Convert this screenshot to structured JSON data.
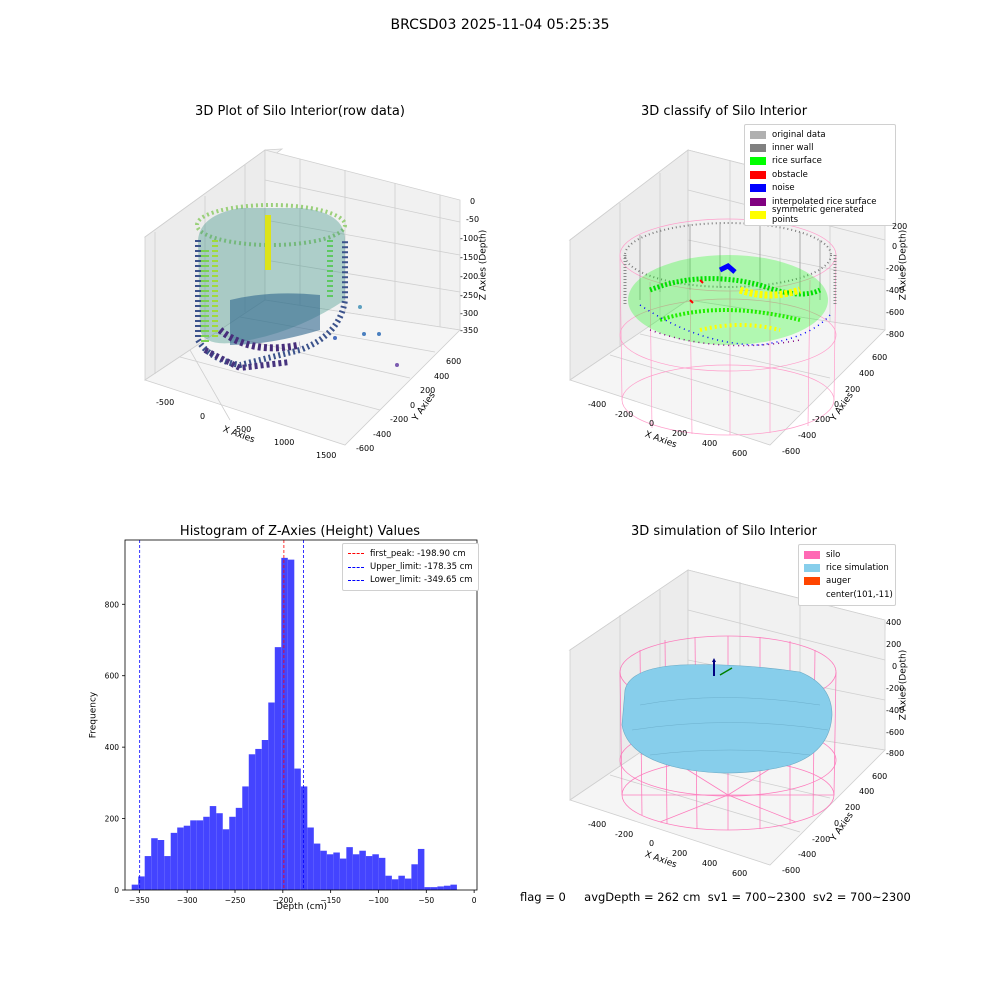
{
  "suptitle": "BRCSD03 2025-11-04 05:25:35",
  "panels": {
    "raw": {
      "title": "3D Plot of Silo Interior(row data)",
      "xlabel": "X Axies",
      "ylabel": "Y Axies",
      "zlabel": "Z Axies (Depth)",
      "xticks": [
        "-500",
        "0",
        "500",
        "1000",
        "1500"
      ],
      "yticks": [
        "-600",
        "-400",
        "-200",
        "0",
        "200",
        "400",
        "600"
      ],
      "zticks": [
        "0",
        "-50",
        "-100",
        "-150",
        "-200",
        "-250",
        "-300",
        "-350"
      ]
    },
    "classify": {
      "title": "3D classify of Silo Interior",
      "xlabel": "X Axies",
      "ylabel": "Y Axies",
      "zlabel": "Z Axies (Depth)",
      "xticks": [
        "-400",
        "-200",
        "0",
        "200",
        "400",
        "600"
      ],
      "yticks": [
        "-600",
        "-400",
        "-200",
        "0",
        "200",
        "400",
        "600"
      ],
      "zticks": [
        "200",
        "0",
        "-200",
        "-400",
        "-600",
        "-800"
      ],
      "legend": [
        {
          "label": "original data",
          "color": "#b0b0b0"
        },
        {
          "label": "inner wall",
          "color": "#808080"
        },
        {
          "label": "rice surface",
          "color": "#00ff00"
        },
        {
          "label": "obstacle",
          "color": "#ff0000"
        },
        {
          "label": "noise",
          "color": "#0000ff"
        },
        {
          "label": "interpolated rice surface",
          "color": "#800080"
        },
        {
          "label": "symmetric generated points",
          "color": "#ffff00"
        }
      ]
    },
    "simulation": {
      "title": "3D simulation of Silo Interior",
      "xlabel": "X Axies",
      "ylabel": "Y Axies",
      "zlabel": "Z Axies (Depth)",
      "xticks": [
        "-400",
        "-200",
        "0",
        "200",
        "400",
        "600"
      ],
      "yticks": [
        "-600",
        "-400",
        "-200",
        "0",
        "200",
        "400",
        "600"
      ],
      "zticks": [
        "400",
        "200",
        "0",
        "-200",
        "-400",
        "-600",
        "-800"
      ],
      "legend": [
        {
          "label": "silo",
          "color": "#ff69b4"
        },
        {
          "label": "rice simulation",
          "color": "#87ceeb"
        },
        {
          "label": "auger",
          "color": "#ff4500"
        },
        {
          "label": "center(101,-11)",
          "color": "transparent"
        }
      ]
    }
  },
  "status": {
    "flag": "flag = 0",
    "avg": "avgDepth = 262 cm",
    "sv1": "sv1 = 700~2300",
    "sv2": "sv2 = 700~2300"
  },
  "colors": {
    "bars": "#4444ff",
    "peak": "#ff0000",
    "limits": "#0000ff",
    "silo": "#ff69b4",
    "rice": "#87ceeb"
  },
  "chart_data": {
    "type": "bar",
    "title": "Histogram of Z-Axies (Height) Values",
    "xlabel": "Depth (cm)",
    "ylabel": "Frequency",
    "xlim": [
      -365,
      3
    ],
    "ylim": [
      0,
      980
    ],
    "xticks": [
      -350,
      -300,
      -250,
      -200,
      -150,
      -100,
      -50,
      0
    ],
    "yticks": [
      0,
      200,
      400,
      600,
      800
    ],
    "bin_start": -358,
    "bin_width": 6.8,
    "values": [
      15,
      38,
      95,
      145,
      140,
      95,
      160,
      175,
      180,
      195,
      195,
      205,
      235,
      215,
      170,
      205,
      230,
      290,
      380,
      395,
      420,
      525,
      680,
      930,
      925,
      340,
      290,
      175,
      130,
      110,
      100,
      105,
      88,
      120,
      100,
      110,
      95,
      100,
      90,
      40,
      30,
      40,
      32,
      72,
      115,
      8,
      8,
      10,
      12,
      15
    ],
    "lines": [
      {
        "name": "first_peak: -198.90 cm",
        "x": -198.9,
        "color": "#ff0000"
      },
      {
        "name": "Upper_limit: -178.35 cm",
        "x": -178.35,
        "color": "#0000ff"
      },
      {
        "name": "Lower_limit: -349.65 cm",
        "x": -349.65,
        "color": "#0000ff"
      }
    ]
  }
}
